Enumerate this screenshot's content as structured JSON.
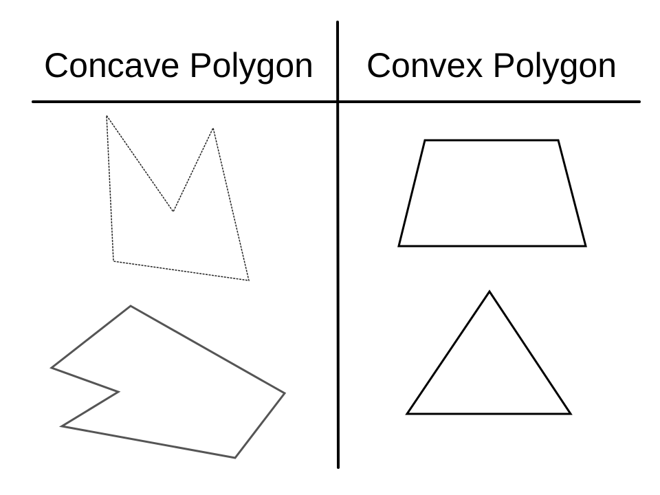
{
  "columns": {
    "left": {
      "heading": "Concave Polygon"
    },
    "right": {
      "heading": "Convex Polygon"
    }
  },
  "shapes": [
    {
      "name": "concave-m-shape",
      "column": "left",
      "kind": "concave polygon"
    },
    {
      "name": "concave-arrow-shape",
      "column": "left",
      "kind": "concave polygon"
    },
    {
      "name": "convex-trapezoid",
      "column": "right",
      "kind": "convex polygon"
    },
    {
      "name": "convex-triangle",
      "column": "right",
      "kind": "convex polygon"
    }
  ],
  "colors": {
    "lines": "#000000",
    "background": "#ffffff",
    "soft_outline": "#555555"
  }
}
